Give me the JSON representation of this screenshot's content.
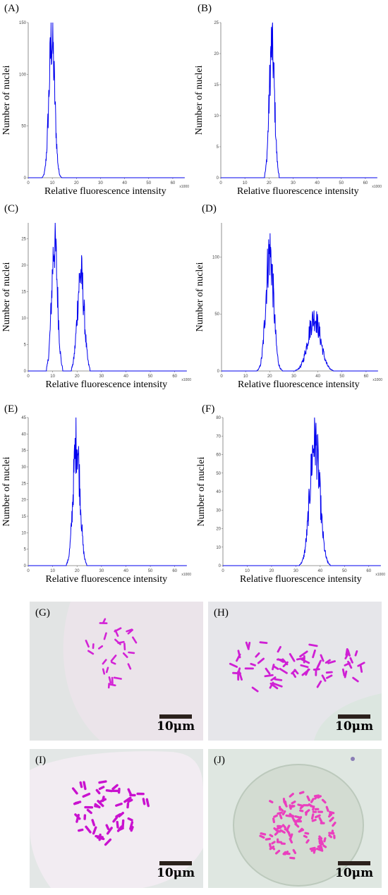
{
  "figure": {
    "chart_data": [
      {
        "id": "A",
        "type": "line",
        "title": "",
        "xlabel": "Relative fluorescence intensity",
        "ylabel": "Number of nuclei",
        "x_multiplier": "x1000",
        "xlim": [
          0,
          65
        ],
        "ylim": [
          0,
          150
        ],
        "xticks": [
          "0",
          "10",
          "20",
          "30",
          "40",
          "50",
          "60"
        ],
        "xtick_values": [
          0,
          10,
          20,
          30,
          40,
          50,
          60
        ],
        "yticks": [
          "0",
          "50",
          "100",
          "150"
        ],
        "ytick_values": [
          0,
          50,
          100,
          150
        ],
        "series": [
          {
            "color": "#0000ee",
            "peaks": [
              {
                "x": 9.8,
                "height": 138,
                "width": 1.2
              }
            ]
          }
        ]
      },
      {
        "id": "B",
        "type": "line",
        "title": "",
        "xlabel": "Relative fluorescence intensity",
        "ylabel": "Number of nuclei",
        "x_multiplier": "x1000",
        "xlim": [
          0,
          65
        ],
        "ylim": [
          0,
          25
        ],
        "xticks": [
          "0",
          "10",
          "20",
          "30",
          "40",
          "50",
          "60"
        ],
        "xtick_values": [
          0,
          10,
          20,
          30,
          40,
          50,
          60
        ],
        "yticks": [
          "0",
          "5",
          "10",
          "15",
          "20",
          "25"
        ],
        "ytick_values": [
          0,
          5,
          10,
          15,
          20,
          25
        ],
        "series": [
          {
            "color": "#0000ee",
            "peaks": [
              {
                "x": 21.2,
                "height": 22,
                "width": 1.1
              }
            ]
          }
        ]
      },
      {
        "id": "C",
        "type": "line",
        "title": "",
        "xlabel": "Relative fluorescence intensity",
        "ylabel": "Number of nuclei",
        "x_multiplier": "x1000",
        "xlim": [
          0,
          65
        ],
        "ylim": [
          0,
          28
        ],
        "xticks": [
          "0",
          "10",
          "20",
          "30",
          "40",
          "50",
          "60"
        ],
        "xtick_values": [
          0,
          10,
          20,
          30,
          40,
          50,
          60
        ],
        "yticks": [
          "0",
          "5",
          "10",
          "15",
          "20",
          "25"
        ],
        "ytick_values": [
          0,
          5,
          10,
          15,
          20,
          25
        ],
        "series": [
          {
            "color": "#0000ee",
            "peaks": [
              {
                "x": 10.8,
                "height": 25,
                "width": 1.2
              },
              {
                "x": 21.5,
                "height": 19,
                "width": 1.4
              }
            ]
          }
        ]
      },
      {
        "id": "D",
        "type": "line",
        "title": "",
        "xlabel": "Relative fluorescence intensity",
        "ylabel": "Number of nuclei",
        "x_multiplier": "x1000",
        "xlim": [
          0,
          65
        ],
        "ylim": [
          0,
          130
        ],
        "xticks": [
          "0",
          "10",
          "20",
          "30",
          "40",
          "50",
          "60"
        ],
        "xtick_values": [
          0,
          10,
          20,
          30,
          40,
          50,
          60
        ],
        "yticks": [
          "0",
          "50",
          "100"
        ],
        "ytick_values": [
          0,
          50,
          100
        ],
        "series": [
          {
            "color": "#0000ee",
            "peaks": [
              {
                "x": 20.0,
                "height": 108,
                "width": 1.6
              },
              {
                "x": 38.5,
                "height": 48,
                "width": 2.6
              }
            ]
          }
        ]
      },
      {
        "id": "E",
        "type": "line",
        "title": "",
        "xlabel": "Relative fluorescence intensity",
        "ylabel": "Number of nuclei",
        "x_multiplier": "x1000",
        "xlim": [
          0,
          65
        ],
        "ylim": [
          0,
          45
        ],
        "xticks": [
          "0",
          "10",
          "20",
          "30",
          "40",
          "50",
          "60"
        ],
        "xtick_values": [
          0,
          10,
          20,
          30,
          40,
          50,
          60
        ],
        "yticks": [
          "0",
          "5",
          "10",
          "15",
          "20",
          "25",
          "30",
          "35",
          "40",
          "45"
        ],
        "ytick_values": [
          0,
          5,
          10,
          15,
          20,
          25,
          30,
          35,
          40,
          45
        ],
        "series": [
          {
            "color": "#0000ee",
            "peaks": [
              {
                "x": 19.8,
                "height": 39,
                "width": 1.4
              }
            ]
          }
        ]
      },
      {
        "id": "F",
        "type": "line",
        "title": "",
        "xlabel": "Relative fluorescence intensity",
        "ylabel": "Number of nuclei",
        "x_multiplier": "x1000",
        "xlim": [
          0,
          65
        ],
        "ylim": [
          0,
          80
        ],
        "xticks": [
          "0",
          "10",
          "20",
          "30",
          "40",
          "50",
          "60"
        ],
        "xtick_values": [
          0,
          10,
          20,
          30,
          40,
          50,
          60
        ],
        "yticks": [
          "0",
          "10",
          "20",
          "30",
          "40",
          "50",
          "60",
          "70",
          "80"
        ],
        "ytick_values": [
          0,
          10,
          20,
          30,
          40,
          50,
          60,
          70,
          80
        ],
        "series": [
          {
            "color": "#0000ee",
            "peaks": [
              {
                "x": 37.8,
                "height": 70,
                "width": 2.0
              }
            ]
          }
        ]
      }
    ],
    "micrographs": [
      {
        "id": "G",
        "scale_label": "10μm",
        "background": "#ebe4ea"
      },
      {
        "id": "H",
        "scale_label": "10μm",
        "background": "#e6e6ea"
      },
      {
        "id": "I",
        "scale_label": "10μm",
        "background": "#f2ecf2"
      },
      {
        "id": "J",
        "scale_label": "10μm",
        "background": "#dfe7e1"
      }
    ]
  },
  "labels": {
    "A": "(A)",
    "B": "(B)",
    "C": "(C)",
    "D": "(D)",
    "E": "(E)",
    "F": "(F)",
    "G": "(G)",
    "H": "(H)",
    "I": "(I)",
    "J": "(J)"
  }
}
